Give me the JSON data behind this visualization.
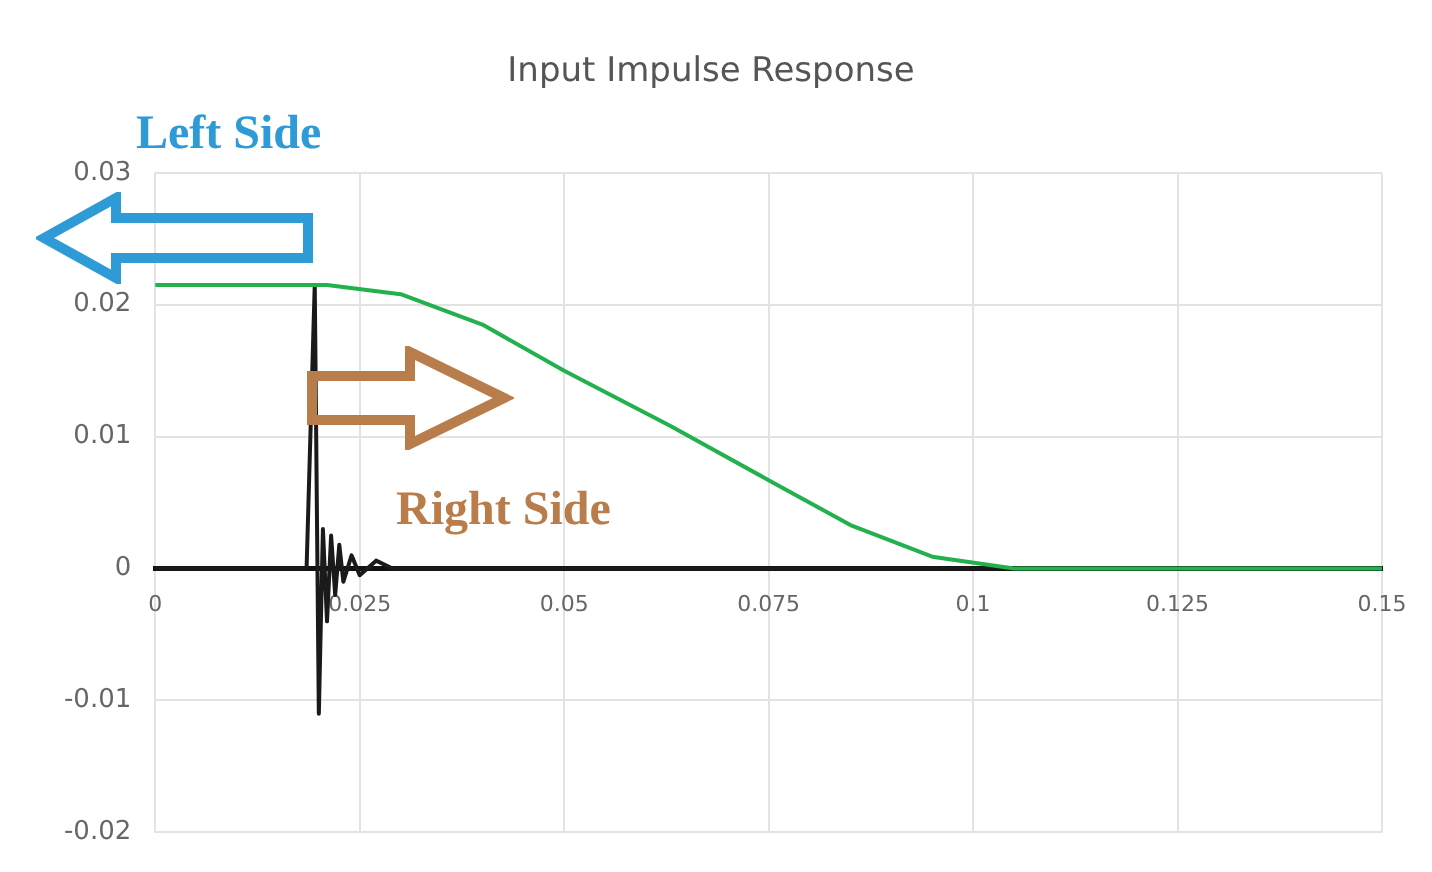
{
  "chart_data": {
    "type": "line",
    "title": "Input Impulse Response",
    "series": [
      {
        "color": "#22b14c",
        "x": [
          0,
          0.021,
          0.03,
          0.04,
          0.05,
          0.063,
          0.075,
          0.085,
          0.095,
          0.105,
          0.15
        ],
        "values": [
          0.0215,
          0.0215,
          0.0208,
          0.0185,
          0.015,
          0.0108,
          0.0067,
          0.0033,
          0.0009,
          0,
          0
        ]
      },
      {
        "color": "#1a1a1a",
        "x": [
          0,
          0.0185,
          0.0195,
          0.0198,
          0.02,
          0.0205,
          0.021,
          0.0215,
          0.022,
          0.0225,
          0.023,
          0.024,
          0.025,
          0.027,
          0.029,
          0.15
        ],
        "values": [
          0,
          0,
          0.0215,
          0.002,
          -0.011,
          0.003,
          -0.004,
          0.0025,
          -0.002,
          0.0018,
          -0.001,
          0.001,
          -0.0005,
          0.0006,
          0,
          0
        ]
      }
    ],
    "xlim": [
      0,
      0.15
    ],
    "xticks": [
      0,
      0.025,
      0.05,
      0.075,
      0.1,
      0.125,
      0.15
    ],
    "ylim": [
      -0.02,
      0.03
    ],
    "yticks": [
      -0.02,
      -0.01,
      0,
      0.01,
      0.02,
      0.03
    ],
    "grid": true,
    "legend": false,
    "marker": "none",
    "line_style": "solid",
    "annotations": [
      "Left Side",
      "Right Side"
    ]
  }
}
